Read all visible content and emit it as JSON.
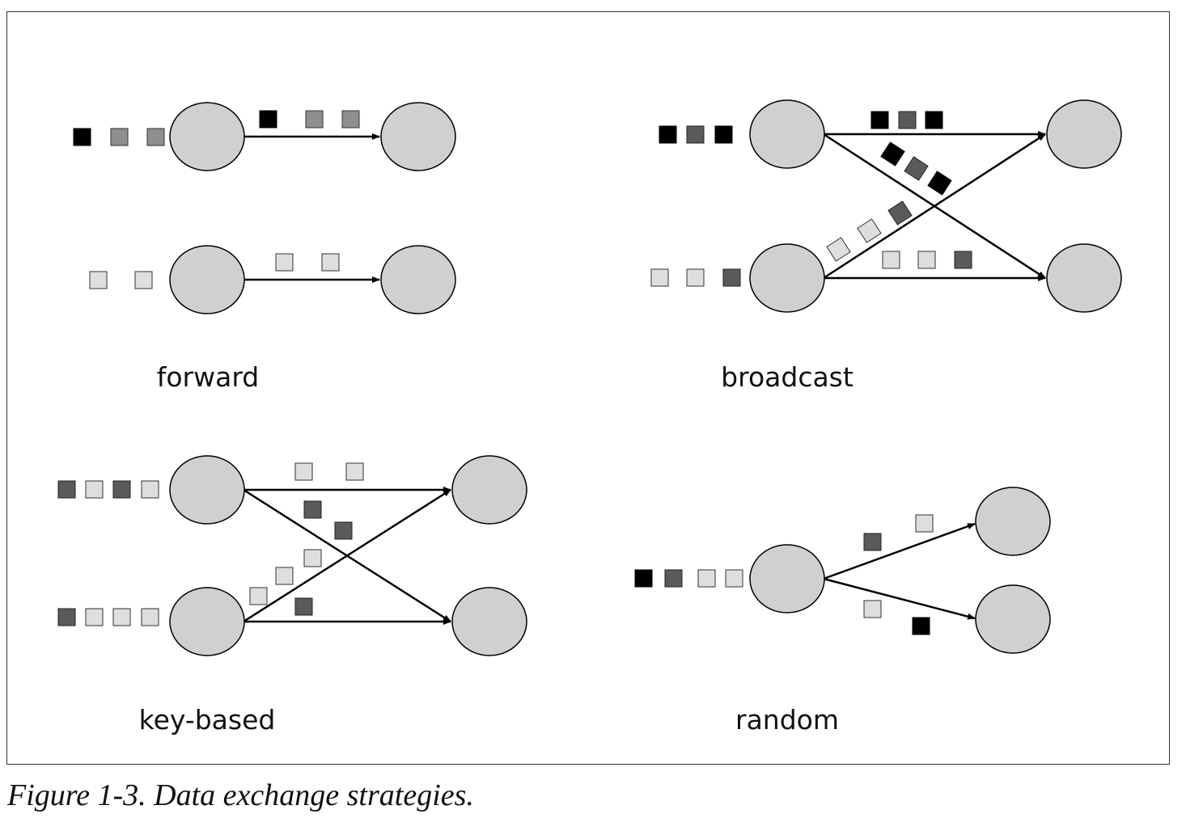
{
  "caption": "Figure 1-3. Data exchange strategies.",
  "colors": {
    "node_fill": "#d0d0d0",
    "record_black": "#000000",
    "record_dark": "#5a5a5a",
    "record_medium": "#8e8e8e",
    "record_light": "#dedede",
    "arrow": "#000000"
  },
  "panels": {
    "forward": {
      "label": "forward"
    },
    "broadcast": {
      "label": "broadcast"
    },
    "key_based": {
      "label": "key-based"
    },
    "random": {
      "label": "random"
    }
  }
}
